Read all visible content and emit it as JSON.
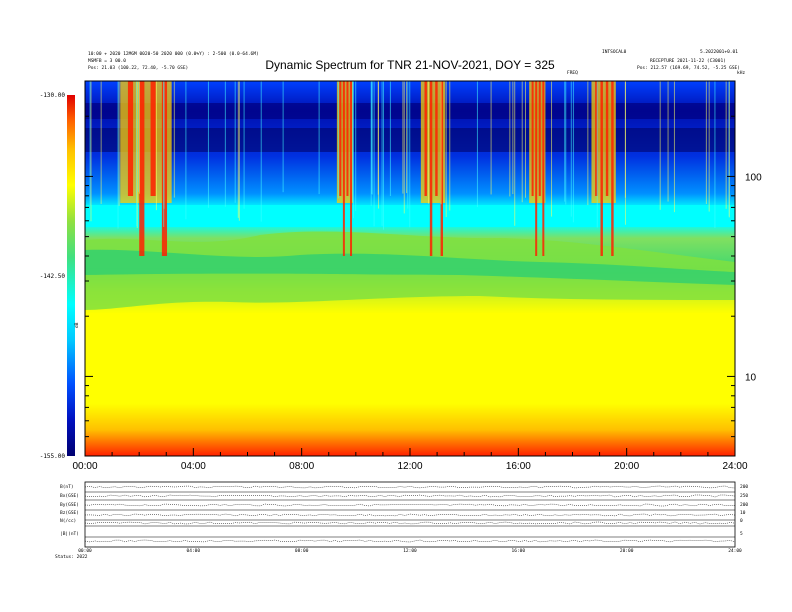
{
  "header": {
    "title": "Dynamic Spectrum for TNR 21-NOV-2021, DOY = 325",
    "left_line1": "10:00 + 2020 12MGM 0020-50 2020 000 (0.0%Y) : 2-500 (0.0-64.6M)",
    "left_line2": "MSMFB = 3 00.0",
    "left_line3": "Pos:  21.03 (100.22, 72.40, -5.70 GSE)",
    "right_line1": "INTSOCAL0",
    "right_line2": "5.2022001+0.01",
    "right_line3": "RECEPTURE 2021-11-22 (C3001)",
    "right_line4": "Pos:  212.57 (169.69, 74.52, -5.25 GSE)",
    "corner_label": "kHz",
    "mid_label": "FREQ"
  },
  "colorbar": {
    "axis_label": "dB",
    "tick_labels": [
      "-130.00",
      "-142.50",
      "-155.00"
    ],
    "colors": [
      "#000070",
      "#0010c0",
      "#0050ff",
      "#00c8ff",
      "#00ffff",
      "#40e080",
      "#90e040",
      "#ffff00",
      "#ffc000",
      "#ff6000",
      "#e00000"
    ]
  },
  "chart_data": {
    "type": "heatmap",
    "title": "Dynamic Spectrum for TNR 21-NOV-2021, DOY = 325",
    "x_tick_labels": [
      "00:00",
      "04:00",
      "08:00",
      "12:00",
      "16:00",
      "20:00",
      "24:00"
    ],
    "x_range_hours": [
      0,
      24
    ],
    "y_unit": "kHz",
    "y_scale": "log",
    "y_range": [
      4,
      300
    ],
    "y_tick_labels": [
      "10",
      "100"
    ],
    "y_ticks": [
      10,
      100
    ],
    "color_range_db": [
      -155.0,
      -130.0
    ],
    "bursts": [
      {
        "start_h": 1.3,
        "end_h": 3.2
      },
      {
        "start_h": 9.3,
        "end_h": 9.9
      },
      {
        "start_h": 12.4,
        "end_h": 13.3
      },
      {
        "start_h": 16.4,
        "end_h": 17.0
      },
      {
        "start_h": 18.7,
        "end_h": 19.6
      }
    ]
  },
  "bottom_panel": {
    "row_labels": [
      "B(nT)",
      "Bx(GSE)",
      "By(GSE)",
      "Bz(GSE)",
      "N(/cc)",
      "|B|(nT)"
    ],
    "right_labels": [
      "200",
      "250",
      "200",
      "10",
      "0",
      "5"
    ],
    "x_tick_labels": [
      "00:00",
      "04:00",
      "08:00",
      "12:00",
      "16:00",
      "20:00",
      "24:00"
    ],
    "footer": "Status: 2022"
  }
}
